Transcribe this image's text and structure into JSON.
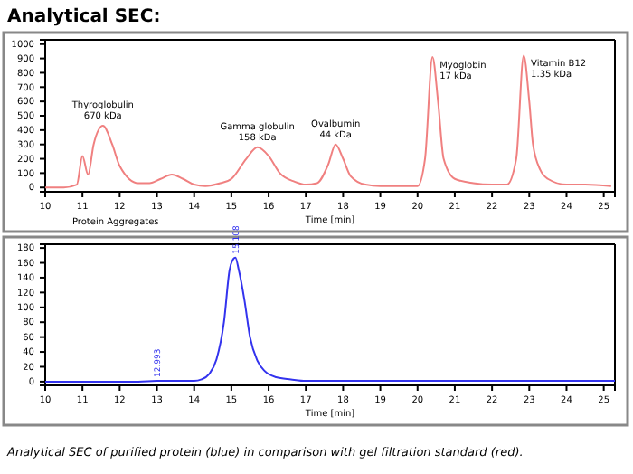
{
  "chart_data": [
    {
      "type": "line",
      "title": "Analytical SEC:",
      "xlabel": "Time [min]",
      "xlim": [
        10,
        25.3
      ],
      "ylim": [
        -30,
        1030
      ],
      "xticks": [
        10,
        11,
        12,
        13,
        14,
        15,
        16,
        17,
        18,
        19,
        20,
        21,
        22,
        23,
        24,
        25
      ],
      "yticks": [
        0,
        100,
        200,
        300,
        400,
        500,
        600,
        700,
        800,
        900,
        1000
      ],
      "grid": false,
      "marker": "none",
      "line_style": "solid",
      "series": [
        {
          "color": "#f08080",
          "x": [
            10,
            10.5,
            10.85,
            11.0,
            11.15,
            11.3,
            11.55,
            11.8,
            12.0,
            12.5,
            12.8,
            13.1,
            13.4,
            13.7,
            14.0,
            14.3,
            14.7,
            15.0,
            15.4,
            15.7,
            16.0,
            16.3,
            16.7,
            17.0,
            17.3,
            17.6,
            17.8,
            18.0,
            18.2,
            18.6,
            19.0,
            19.5,
            20.0,
            20.2,
            20.4,
            20.55,
            20.7,
            21.0,
            21.5,
            22.0,
            22.4,
            22.65,
            22.85,
            23.0,
            23.1,
            23.3,
            23.5,
            24.0,
            24.5,
            25.2
          ],
          "values": [
            0,
            0,
            20,
            220,
            90,
            300,
            430,
            300,
            150,
            30,
            30,
            60,
            90,
            60,
            20,
            10,
            30,
            60,
            200,
            280,
            220,
            100,
            40,
            20,
            30,
            160,
            300,
            200,
            80,
            20,
            10,
            10,
            10,
            200,
            910,
            600,
            200,
            60,
            30,
            20,
            20,
            200,
            920,
            600,
            300,
            120,
            60,
            20,
            20,
            10
          ]
        }
      ],
      "annotations": [
        {
          "text": "Thyroglobulin\n670 kDa",
          "x": 11.55,
          "y": 430
        },
        {
          "text": "Gamma globulin\n158 kDa",
          "x": 15.7,
          "y": 280
        },
        {
          "text": "Ovalbumin\n44 kDa",
          "x": 17.8,
          "y": 300
        },
        {
          "text": "Myoglobin\n17 kDa",
          "x": 20.4,
          "y": 910
        },
        {
          "text": "Vitamin B12\n1.35 kDa",
          "x": 22.85,
          "y": 920
        },
        "Protein Aggregates"
      ]
    },
    {
      "type": "line",
      "xlabel": "Time [min]",
      "xlim": [
        10,
        25.3
      ],
      "ylim": [
        -5,
        185
      ],
      "xticks": [
        10,
        11,
        12,
        13,
        14,
        15,
        16,
        17,
        18,
        19,
        20,
        21,
        22,
        23,
        24,
        25
      ],
      "yticks": [
        0,
        20,
        40,
        60,
        80,
        100,
        120,
        140,
        160,
        180
      ],
      "grid": false,
      "marker": "none",
      "line_style": "solid",
      "series": [
        {
          "color": "#3333ee",
          "x": [
            10,
            12.5,
            12.993,
            13.5,
            14.0,
            14.2,
            14.4,
            14.6,
            14.8,
            14.95,
            15.05,
            15.108,
            15.2,
            15.35,
            15.5,
            15.7,
            15.9,
            16.2,
            16.6,
            17.0,
            18,
            20,
            22,
            24,
            25.3
          ],
          "values": [
            0,
            0,
            1,
            1,
            1,
            3,
            10,
            30,
            80,
            150,
            165,
            167,
            150,
            110,
            60,
            28,
            14,
            6,
            3,
            1,
            1,
            1,
            1,
            1,
            1
          ]
        }
      ],
      "annotations": [
        {
          "text": "12.993",
          "x": 12.993,
          "y": 1
        },
        {
          "text": "15.108",
          "x": 15.108,
          "y": 167
        },
        "Analytical SEC of purified protein (blue) in comparison with gel filtration standard (red)."
      ]
    }
  ]
}
